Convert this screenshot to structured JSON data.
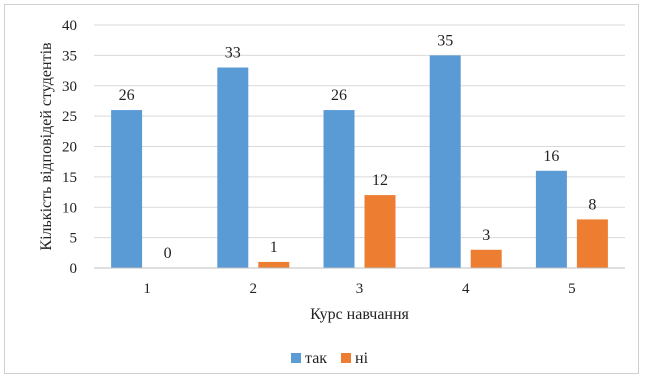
{
  "chart_data": {
    "type": "bar",
    "xlabel": "Курс навчання",
    "ylabel": "Кількість відповідей студентів",
    "categories": [
      "1",
      "2",
      "3",
      "4",
      "5"
    ],
    "ylim": [
      0,
      40
    ],
    "yticks": [
      0,
      5,
      10,
      15,
      20,
      25,
      30,
      35,
      40
    ],
    "grid": true,
    "legend_position": "bottom",
    "series": [
      {
        "name": "так",
        "color": "#5B9BD5",
        "values": [
          26,
          33,
          26,
          35,
          16
        ]
      },
      {
        "name": "ні",
        "color": "#ED7D31",
        "values": [
          0,
          1,
          12,
          3,
          8
        ]
      }
    ]
  }
}
